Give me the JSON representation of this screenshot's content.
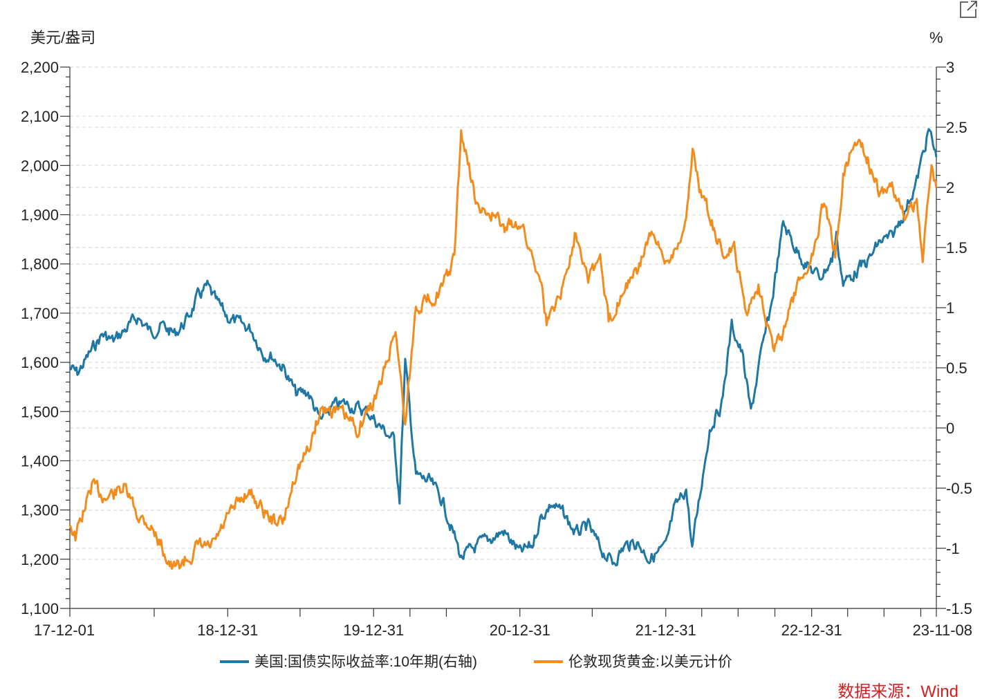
{
  "chart_data": {
    "type": "line",
    "ylabel_left": "美元/盎司",
    "ylabel_right": "%",
    "left_ticks": [
      "1,100",
      "1,200",
      "1,300",
      "1,400",
      "1,500",
      "1,600",
      "1,700",
      "1,800",
      "1,900",
      "2,000",
      "2,100",
      "2,200"
    ],
    "right_ticks": [
      "-1.5",
      "-1",
      "-0.5",
      "0",
      "0.5",
      "1",
      "1.5",
      "2",
      "2.5",
      "3"
    ],
    "ylim_left": [
      1100,
      2200
    ],
    "ylim_right": [
      -1.5,
      3
    ],
    "x_tick_labels": [
      "17-12-01",
      "18-12-31",
      "19-12-31",
      "20-12-31",
      "21-12-31",
      "22-12-31",
      "23-11-08"
    ],
    "x_dates": [
      "2017-12-01",
      "2018-06-30",
      "2018-12-31",
      "2019-06-30",
      "2019-12-31",
      "2020-03-31",
      "2020-06-30",
      "2020-12-31",
      "2021-06-30",
      "2021-12-31",
      "2022-03-31",
      "2022-06-30",
      "2022-09-30",
      "2022-12-31",
      "2023-03-31",
      "2023-06-30",
      "2023-09-30",
      "2023-11-08"
    ],
    "series": [
      {
        "name": "美国:国债实际收益率:10年期(右轴)",
        "axis": "right",
        "color": "#1f77a4",
        "points": [
          [
            "2017-12-01",
            0.5
          ],
          [
            "2017-12-20",
            0.45
          ],
          [
            "2018-01-20",
            0.62
          ],
          [
            "2018-02-20",
            0.78
          ],
          [
            "2018-03-20",
            0.72
          ],
          [
            "2018-04-20",
            0.82
          ],
          [
            "2018-05-20",
            0.92
          ],
          [
            "2018-06-20",
            0.8
          ],
          [
            "2018-07-20",
            0.85
          ],
          [
            "2018-08-20",
            0.78
          ],
          [
            "2018-09-20",
            0.9
          ],
          [
            "2018-10-20",
            1.1
          ],
          [
            "2018-11-10",
            1.17
          ],
          [
            "2018-12-01",
            1.05
          ],
          [
            "2018-12-31",
            0.92
          ],
          [
            "2019-01-31",
            0.86
          ],
          [
            "2019-02-28",
            0.82
          ],
          [
            "2019-03-31",
            0.62
          ],
          [
            "2019-04-20",
            0.6
          ],
          [
            "2019-05-20",
            0.5
          ],
          [
            "2019-06-20",
            0.28
          ],
          [
            "2019-07-20",
            0.3
          ],
          [
            "2019-08-20",
            0.05
          ],
          [
            "2019-09-20",
            0.18
          ],
          [
            "2019-10-20",
            0.2
          ],
          [
            "2019-11-20",
            0.17
          ],
          [
            "2019-12-20",
            0.12
          ],
          [
            "2020-01-20",
            0.0
          ],
          [
            "2020-02-20",
            -0.1
          ],
          [
            "2020-03-05",
            -0.58
          ],
          [
            "2020-03-19",
            0.55
          ],
          [
            "2020-04-15",
            -0.4
          ],
          [
            "2020-05-20",
            -0.45
          ],
          [
            "2020-06-20",
            -0.6
          ],
          [
            "2020-07-20",
            -0.9
          ],
          [
            "2020-08-06",
            -1.08
          ],
          [
            "2020-09-20",
            -0.97
          ],
          [
            "2020-10-20",
            -0.92
          ],
          [
            "2020-11-20",
            -0.86
          ],
          [
            "2020-12-31",
            -1.04
          ],
          [
            "2021-01-31",
            -0.98
          ],
          [
            "2021-02-20",
            -0.75
          ],
          [
            "2021-03-20",
            -0.63
          ],
          [
            "2021-04-20",
            -0.72
          ],
          [
            "2021-05-20",
            -0.88
          ],
          [
            "2021-06-20",
            -0.82
          ],
          [
            "2021-07-20",
            -1.0
          ],
          [
            "2021-08-20",
            -1.12
          ],
          [
            "2021-09-20",
            -0.98
          ],
          [
            "2021-10-20",
            -0.95
          ],
          [
            "2021-11-20",
            -1.08
          ],
          [
            "2021-12-31",
            -1.0
          ],
          [
            "2022-01-20",
            -0.7
          ],
          [
            "2022-02-20",
            -0.5
          ],
          [
            "2022-03-07",
            -1.0
          ],
          [
            "2022-03-31",
            -0.45
          ],
          [
            "2022-04-20",
            0.0
          ],
          [
            "2022-05-20",
            0.2
          ],
          [
            "2022-06-14",
            0.85
          ],
          [
            "2022-07-10",
            0.62
          ],
          [
            "2022-08-01",
            0.12
          ],
          [
            "2022-08-20",
            0.5
          ],
          [
            "2022-09-20",
            1.0
          ],
          [
            "2022-10-21",
            1.7
          ],
          [
            "2022-11-20",
            1.5
          ],
          [
            "2022-12-20",
            1.35
          ],
          [
            "2023-01-20",
            1.25
          ],
          [
            "2023-02-20",
            1.4
          ],
          [
            "2023-03-03",
            1.6
          ],
          [
            "2023-03-20",
            1.2
          ],
          [
            "2023-04-20",
            1.3
          ],
          [
            "2023-05-20",
            1.38
          ],
          [
            "2023-06-20",
            1.55
          ],
          [
            "2023-07-20",
            1.58
          ],
          [
            "2023-08-20",
            1.8
          ],
          [
            "2023-09-20",
            2.05
          ],
          [
            "2023-10-20",
            2.48
          ],
          [
            "2023-11-08",
            2.25
          ]
        ]
      },
      {
        "name": "伦敦现货黄金:以美元计价",
        "axis": "left",
        "color": "#f28c1c",
        "points": [
          [
            "2017-12-01",
            1275
          ],
          [
            "2017-12-15",
            1245
          ],
          [
            "2018-01-25",
            1350
          ],
          [
            "2018-03-01",
            1325
          ],
          [
            "2018-04-15",
            1345
          ],
          [
            "2018-05-20",
            1290
          ],
          [
            "2018-06-20",
            1270
          ],
          [
            "2018-07-20",
            1225
          ],
          [
            "2018-08-16",
            1178
          ],
          [
            "2018-09-20",
            1200
          ],
          [
            "2018-10-20",
            1225
          ],
          [
            "2018-11-20",
            1222
          ],
          [
            "2018-12-31",
            1282
          ],
          [
            "2019-01-31",
            1320
          ],
          [
            "2019-02-20",
            1340
          ],
          [
            "2019-03-20",
            1310
          ],
          [
            "2019-04-20",
            1280
          ],
          [
            "2019-05-20",
            1275
          ],
          [
            "2019-06-20",
            1380
          ],
          [
            "2019-07-20",
            1420
          ],
          [
            "2019-08-20",
            1505
          ],
          [
            "2019-09-20",
            1505
          ],
          [
            "2019-10-20",
            1490
          ],
          [
            "2019-11-20",
            1465
          ],
          [
            "2019-12-31",
            1520
          ],
          [
            "2020-01-20",
            1560
          ],
          [
            "2020-02-24",
            1670
          ],
          [
            "2020-03-19",
            1475
          ],
          [
            "2020-04-15",
            1715
          ],
          [
            "2020-05-20",
            1730
          ],
          [
            "2020-06-20",
            1750
          ],
          [
            "2020-07-20",
            1810
          ],
          [
            "2020-08-06",
            2067
          ],
          [
            "2020-09-20",
            1900
          ],
          [
            "2020-10-20",
            1905
          ],
          [
            "2020-11-20",
            1870
          ],
          [
            "2020-12-31",
            1888
          ],
          [
            "2021-01-20",
            1840
          ],
          [
            "2021-02-20",
            1780
          ],
          [
            "2021-03-08",
            1680
          ],
          [
            "2021-04-20",
            1760
          ],
          [
            "2021-05-20",
            1870
          ],
          [
            "2021-06-20",
            1780
          ],
          [
            "2021-07-20",
            1810
          ],
          [
            "2021-08-10",
            1680
          ],
          [
            "2021-09-20",
            1760
          ],
          [
            "2021-10-20",
            1780
          ],
          [
            "2021-11-20",
            1860
          ],
          [
            "2021-12-31",
            1805
          ],
          [
            "2022-01-20",
            1830
          ],
          [
            "2022-02-20",
            1880
          ],
          [
            "2022-03-08",
            2039
          ],
          [
            "2022-03-31",
            1935
          ],
          [
            "2022-04-20",
            1900
          ],
          [
            "2022-05-20",
            1820
          ],
          [
            "2022-06-20",
            1830
          ],
          [
            "2022-07-20",
            1700
          ],
          [
            "2022-08-20",
            1760
          ],
          [
            "2022-09-28",
            1625
          ],
          [
            "2022-10-20",
            1660
          ],
          [
            "2022-11-20",
            1740
          ],
          [
            "2022-12-31",
            1815
          ],
          [
            "2023-01-31",
            1930
          ],
          [
            "2023-02-28",
            1820
          ],
          [
            "2023-03-20",
            1980
          ],
          [
            "2023-04-13",
            2040
          ],
          [
            "2023-05-04",
            2050
          ],
          [
            "2023-06-20",
            1940
          ],
          [
            "2023-07-20",
            1960
          ],
          [
            "2023-08-20",
            1895
          ],
          [
            "2023-09-20",
            1925
          ],
          [
            "2023-10-05",
            1820
          ],
          [
            "2023-10-27",
            2000
          ],
          [
            "2023-11-08",
            1955
          ]
        ]
      }
    ],
    "legend_position": "bottom-center",
    "grid": true,
    "source": "数据来源：Wind"
  },
  "ui": {
    "external_link_icon": "external-link-icon"
  }
}
